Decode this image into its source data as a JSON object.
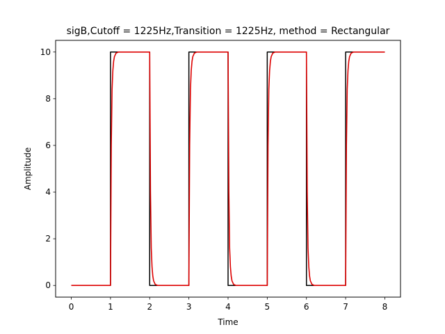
{
  "chart_data": {
    "type": "line",
    "title": "sigB,Cutoff = 1225Hz,Transition = 1225Hz, method = Rectangular",
    "xlabel": "Time",
    "ylabel": "Amplitude",
    "xlim": [
      -0.4,
      8.4
    ],
    "ylim": [
      -0.5,
      10.5
    ],
    "xticks": [
      0,
      1,
      2,
      3,
      4,
      5,
      6,
      7,
      8
    ],
    "yticks": [
      0,
      2,
      4,
      6,
      8,
      10
    ],
    "xtick_labels": [
      "0",
      "1",
      "2",
      "3",
      "4",
      "5",
      "6",
      "7",
      "8"
    ],
    "ytick_labels": [
      "0",
      "2",
      "4",
      "6",
      "8",
      "10"
    ],
    "grid": false,
    "legend": "none",
    "series": [
      {
        "color": "#000000",
        "x": [
          0,
          1,
          1,
          1.03,
          2,
          2,
          2.03,
          3,
          3,
          3.03,
          4,
          4,
          4.03,
          5,
          5,
          5.03,
          6,
          6,
          6.03,
          7,
          7,
          7.03,
          8
        ],
        "y": [
          0,
          0,
          10,
          10,
          10,
          0,
          0,
          0,
          10,
          10,
          10,
          0,
          0,
          0,
          10,
          10,
          10,
          0,
          0,
          0,
          10,
          10,
          10
        ]
      },
      {
        "color": "#dd0000",
        "x": [
          0,
          1,
          1.02,
          1.04,
          1.06,
          1.08,
          1.1,
          1.14,
          1.2,
          2,
          2.02,
          2.04,
          2.06,
          2.08,
          2.1,
          2.14,
          2.2,
          3,
          3.02,
          3.04,
          3.06,
          3.08,
          3.1,
          3.14,
          3.2,
          4,
          4.02,
          4.04,
          4.06,
          4.08,
          4.1,
          4.14,
          4.2,
          5,
          5.02,
          5.04,
          5.06,
          5.08,
          5.1,
          5.14,
          5.2,
          6,
          6.02,
          6.04,
          6.06,
          6.08,
          6.1,
          6.14,
          6.2,
          7,
          7.02,
          7.04,
          7.06,
          7.08,
          7.1,
          7.14,
          7.2,
          8
        ],
        "y": [
          0,
          0,
          6.0,
          8.4,
          9.2,
          9.6,
          9.8,
          9.95,
          10,
          10,
          4.0,
          1.6,
          0.8,
          0.4,
          0.2,
          0.05,
          0,
          0,
          6.0,
          8.4,
          9.2,
          9.6,
          9.8,
          9.95,
          10,
          10,
          4.0,
          1.6,
          0.8,
          0.4,
          0.2,
          0.05,
          0,
          0,
          6.0,
          8.4,
          9.2,
          9.6,
          9.8,
          9.95,
          10,
          10,
          4.0,
          1.6,
          0.8,
          0.4,
          0.2,
          0.05,
          0,
          0,
          6.0,
          8.4,
          9.2,
          9.6,
          9.8,
          9.95,
          10,
          10
        ]
      }
    ]
  }
}
